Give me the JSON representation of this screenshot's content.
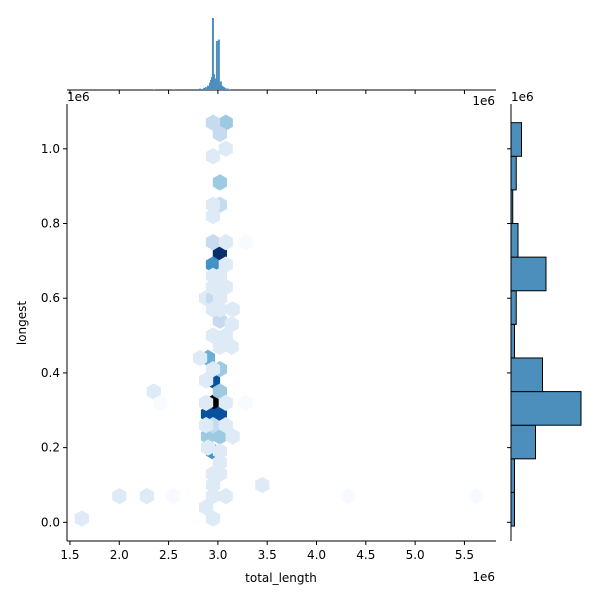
{
  "chart_data": [
    {
      "type": "heatmap",
      "subtype": "hexbin",
      "xlabel": "total_length",
      "ylabel": "longest",
      "x_offset_label": "1e6",
      "y_offset_label": "1e6",
      "xlim": [
        1.47,
        5.82
      ],
      "ylim": [
        -0.05,
        1.12
      ],
      "x_ticks": [
        1.5,
        2.0,
        2.5,
        3.0,
        3.5,
        4.0,
        4.5,
        5.0,
        5.5
      ],
      "x_tick_labels": [
        "1.5",
        "2.0",
        "2.5",
        "3.0",
        "3.5",
        "4.0",
        "4.5",
        "5.0",
        "5.5"
      ],
      "y_ticks": [
        0.0,
        0.2,
        0.4,
        0.6,
        0.8,
        1.0
      ],
      "y_tick_labels": [
        "0.0",
        "0.2",
        "0.4",
        "0.6",
        "0.8",
        "1.0"
      ],
      "colormap": [
        "#f7fbff",
        "#deebf7",
        "#c6dbef",
        "#9ecae1",
        "#6baed6",
        "#4292c6",
        "#2171b5",
        "#08519c",
        "#08306b",
        "#000000"
      ],
      "cells": [
        [
          2.95,
          0.32,
          1.0
        ],
        [
          2.9,
          0.29,
          0.78
        ],
        [
          3.02,
          0.29,
          0.82
        ],
        [
          2.95,
          0.38,
          0.8
        ],
        [
          3.02,
          0.72,
          0.88
        ],
        [
          2.95,
          0.69,
          0.58
        ],
        [
          2.95,
          0.19,
          0.5
        ],
        [
          2.9,
          0.44,
          0.42
        ],
        [
          3.02,
          0.35,
          0.28
        ],
        [
          3.02,
          0.41,
          0.3
        ],
        [
          3.02,
          0.23,
          0.3
        ],
        [
          2.9,
          0.23,
          0.28
        ],
        [
          2.95,
          0.26,
          0.22
        ],
        [
          3.02,
          0.91,
          0.32
        ],
        [
          3.08,
          1.07,
          0.3
        ],
        [
          2.95,
          1.07,
          0.18
        ],
        [
          3.02,
          1.04,
          0.22
        ],
        [
          3.02,
          0.54,
          0.25
        ],
        [
          2.95,
          0.75,
          0.18
        ],
        [
          3.08,
          0.69,
          0.16
        ],
        [
          3.08,
          0.75,
          0.12
        ],
        [
          3.02,
          0.85,
          0.18
        ],
        [
          2.95,
          0.82,
          0.14
        ],
        [
          2.88,
          0.6,
          0.16
        ],
        [
          2.95,
          0.6,
          0.2
        ],
        [
          3.02,
          0.6,
          0.16
        ],
        [
          2.95,
          0.57,
          0.12
        ],
        [
          3.02,
          0.57,
          0.1
        ],
        [
          2.95,
          0.5,
          0.14
        ],
        [
          3.08,
          0.5,
          0.1
        ],
        [
          3.14,
          0.47,
          0.08
        ],
        [
          3.14,
          0.53,
          0.08
        ],
        [
          2.95,
          0.41,
          0.16
        ],
        [
          2.88,
          0.38,
          0.12
        ],
        [
          2.88,
          0.32,
          0.12
        ],
        [
          3.08,
          0.32,
          0.1
        ],
        [
          2.88,
          0.26,
          0.14
        ],
        [
          3.08,
          0.26,
          0.1
        ],
        [
          2.9,
          0.2,
          0.14
        ],
        [
          3.02,
          0.19,
          0.12
        ],
        [
          3.02,
          0.16,
          0.1
        ],
        [
          2.95,
          0.13,
          0.08
        ],
        [
          2.95,
          0.1,
          0.1
        ],
        [
          2.95,
          0.07,
          0.08
        ],
        [
          3.08,
          0.07,
          0.06
        ],
        [
          2.95,
          0.01,
          0.06
        ],
        [
          2.88,
          0.04,
          0.06
        ],
        [
          2.95,
          0.98,
          0.08
        ],
        [
          3.08,
          1.0,
          0.1
        ],
        [
          2.95,
          0.85,
          0.08
        ],
        [
          2.95,
          0.63,
          0.08
        ],
        [
          3.02,
          0.66,
          0.1
        ],
        [
          2.95,
          0.66,
          0.08
        ],
        [
          3.08,
          0.63,
          0.06
        ],
        [
          3.02,
          0.47,
          0.08
        ],
        [
          3.02,
          0.13,
          0.06
        ],
        [
          3.28,
          0.75,
          0.05
        ],
        [
          3.28,
          0.32,
          0.05
        ],
        [
          3.45,
          0.1,
          0.07
        ],
        [
          2.35,
          0.35,
          0.06
        ],
        [
          2.42,
          0.32,
          0.05
        ],
        [
          2.0,
          0.07,
          0.06
        ],
        [
          2.28,
          0.07,
          0.06
        ],
        [
          2.55,
          0.07,
          0.05
        ],
        [
          4.32,
          0.07,
          0.05
        ],
        [
          5.62,
          0.07,
          0.05
        ],
        [
          1.62,
          0.01,
          0.06
        ],
        [
          3.15,
          0.23,
          0.06
        ],
        [
          2.82,
          0.44,
          0.06
        ],
        [
          3.15,
          0.57,
          0.06
        ]
      ]
    },
    {
      "type": "bar",
      "role": "x-marginal-histogram",
      "color": "#4c8fbd",
      "x": [
        2.35,
        2.55,
        2.82,
        2.86,
        2.88,
        2.9,
        2.92,
        2.93,
        2.94,
        2.95,
        2.96,
        2.97,
        2.98,
        2.99,
        3.0,
        3.01,
        3.02,
        3.03,
        3.04,
        3.05,
        3.06,
        3.07,
        3.08,
        3.1,
        3.12
      ],
      "values": [
        0.01,
        0.01,
        0.02,
        0.03,
        0.04,
        0.06,
        0.1,
        0.14,
        0.18,
        1.0,
        0.22,
        0.16,
        0.12,
        0.68,
        0.14,
        0.7,
        0.08,
        0.12,
        0.06,
        0.05,
        0.04,
        0.03,
        0.02,
        0.02,
        0.01
      ]
    },
    {
      "type": "bar",
      "role": "y-marginal-histogram",
      "orientation": "horizontal",
      "color": "#4c8fbd",
      "bin_edges": [
        -0.01,
        0.08,
        0.17,
        0.26,
        0.35,
        0.44,
        0.53,
        0.62,
        0.71,
        0.8,
        0.89,
        0.98,
        1.07
      ],
      "values": [
        2,
        2,
        14,
        40,
        18,
        2,
        3,
        20,
        4,
        1,
        3,
        6
      ]
    }
  ]
}
